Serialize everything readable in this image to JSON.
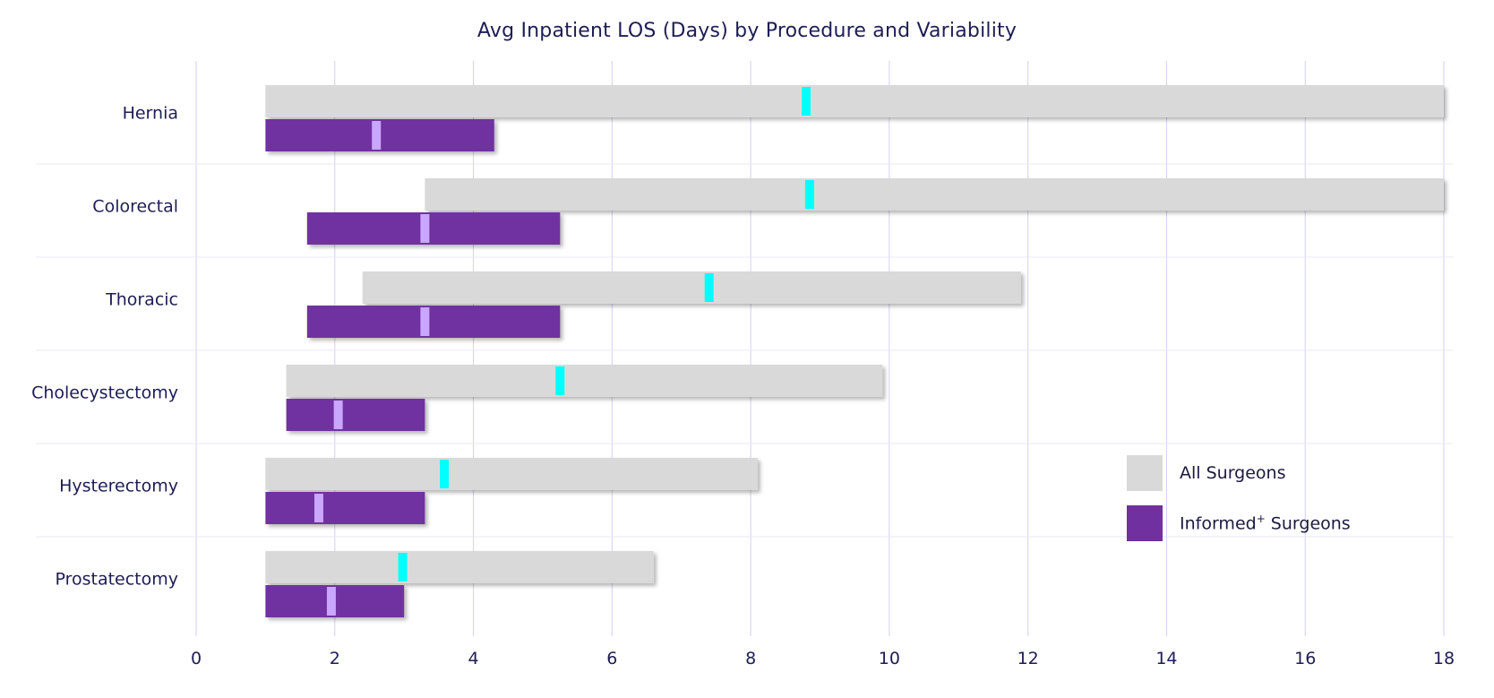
{
  "chart_data": {
    "type": "bar",
    "subtype": "range-bar-with-median",
    "title": "Avg Inpatient LOS (Days) by Procedure and Variability",
    "xlabel": "",
    "ylabel": "",
    "xlim": [
      0,
      18
    ],
    "xticks": [
      0,
      2,
      4,
      6,
      8,
      10,
      12,
      14,
      16,
      18
    ],
    "grid": true,
    "legend_position": "bottom-right",
    "categories": [
      "Hernia",
      "Colorectal",
      "Thoracic",
      "Cholecystectomy",
      "Hysterectomy",
      "Prostatectomy"
    ],
    "series": [
      {
        "name": "All Surgeons",
        "color": "#d9d9d9",
        "median_color": "#00ffff",
        "min": [
          1.0,
          3.3,
          2.4,
          1.3,
          1.0,
          1.0
        ],
        "max": [
          18.0,
          18.0,
          11.9,
          9.9,
          8.1,
          6.6
        ],
        "median": [
          8.8,
          8.85,
          7.4,
          5.25,
          3.58,
          2.98
        ]
      },
      {
        "name": "Informed+ Surgeons",
        "color": "#7030a0",
        "median_color": "#c9a6ff",
        "min": [
          1.0,
          1.6,
          1.6,
          1.3,
          1.0,
          1.0
        ],
        "max": [
          4.3,
          5.25,
          5.25,
          3.3,
          3.3,
          3.0
        ],
        "median": [
          2.6,
          3.3,
          3.3,
          2.05,
          1.77,
          1.95
        ]
      }
    ]
  },
  "legend": {
    "all_label": "All Surgeons",
    "informed_label_main": "Informed",
    "informed_label_sup": "+",
    "informed_label_tail": " Surgeons"
  }
}
